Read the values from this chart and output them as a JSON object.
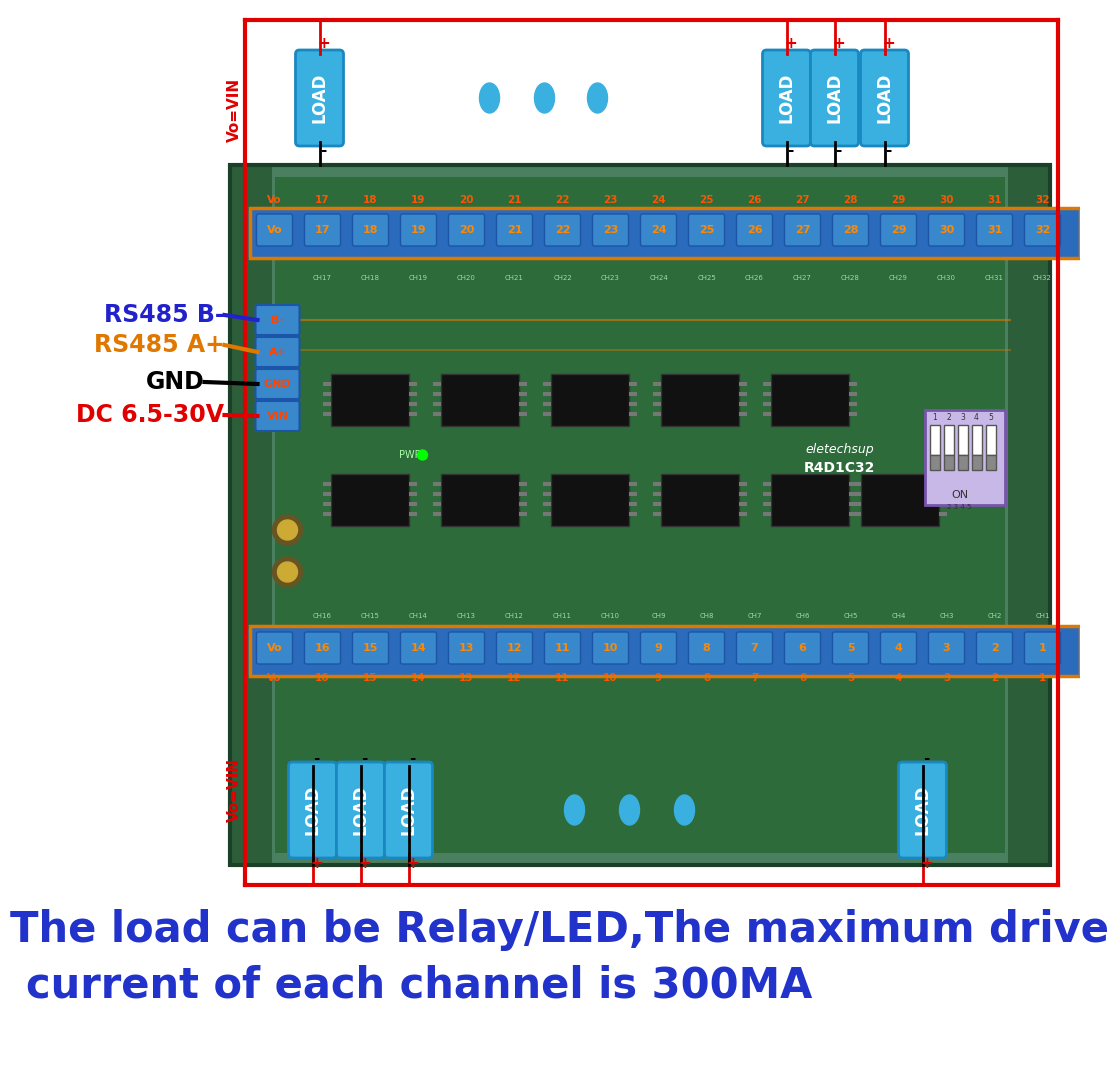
{
  "bg_color": "#ffffff",
  "board_color": "#4a8a5a",
  "load_color": "#3ab0e0",
  "wire_red": "#e00000",
  "wire_black": "#000000",
  "wire_blue": "#2222cc",
  "wire_orange": "#e07800",
  "label_rs485b_color": "#2222cc",
  "label_rs485a_color": "#e07800",
  "label_gnd_color": "#000000",
  "label_vin_color": "#e00000",
  "footer_color": "#2233cc",
  "footer_line1": "The load can be Relay/LED,The maximum drive",
  "footer_line2": "current of each channel is 300MA",
  "top_channels": [
    "Vo",
    "17",
    "18",
    "19",
    "20",
    "21",
    "22",
    "23",
    "24",
    "25",
    "26",
    "27",
    "28",
    "29",
    "30",
    "31",
    "32"
  ],
  "bot_channels": [
    "Vo",
    "16",
    "15",
    "14",
    "13",
    "12",
    "11",
    "10",
    "9",
    "8",
    "7",
    "6",
    "5",
    "4",
    "3",
    "2",
    "1"
  ]
}
